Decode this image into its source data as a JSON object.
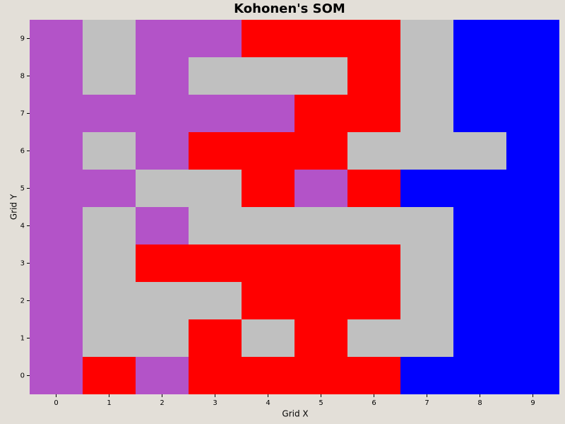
{
  "chart_data": {
    "type": "heatmap",
    "title": "Kohonen's SOM",
    "x_label": "Grid X",
    "y_label": "Grid Y",
    "colors": [
      "#b353c8",
      "#c0c0c0",
      "#ff0000",
      "#0000ff"
    ],
    "z": [
      [
        0,
        2,
        0,
        2,
        2,
        2,
        2,
        3,
        3,
        3
      ],
      [
        0,
        1,
        1,
        2,
        1,
        2,
        1,
        1,
        3,
        3
      ],
      [
        0,
        1,
        1,
        1,
        2,
        2,
        2,
        1,
        3,
        3
      ],
      [
        0,
        1,
        2,
        2,
        2,
        2,
        2,
        1,
        3,
        3
      ],
      [
        0,
        1,
        0,
        1,
        1,
        1,
        1,
        1,
        3,
        3
      ],
      [
        0,
        0,
        1,
        1,
        2,
        0,
        2,
        3,
        3,
        3
      ],
      [
        0,
        1,
        0,
        2,
        2,
        2,
        1,
        1,
        1,
        3
      ],
      [
        0,
        0,
        0,
        0,
        0,
        2,
        2,
        1,
        3,
        3
      ],
      [
        0,
        1,
        0,
        1,
        1,
        1,
        2,
        1,
        3,
        3
      ],
      [
        0,
        1,
        0,
        0,
        2,
        2,
        2,
        1,
        3,
        3
      ]
    ],
    "xlim": [
      -0.5,
      9.5
    ],
    "ylim": [
      -0.5,
      9.5
    ],
    "xticks": [
      0,
      1,
      2,
      3,
      4,
      5,
      6,
      7,
      8,
      9
    ],
    "yticks": [
      0,
      1,
      2,
      3,
      4,
      5,
      6,
      7,
      8,
      9
    ]
  }
}
